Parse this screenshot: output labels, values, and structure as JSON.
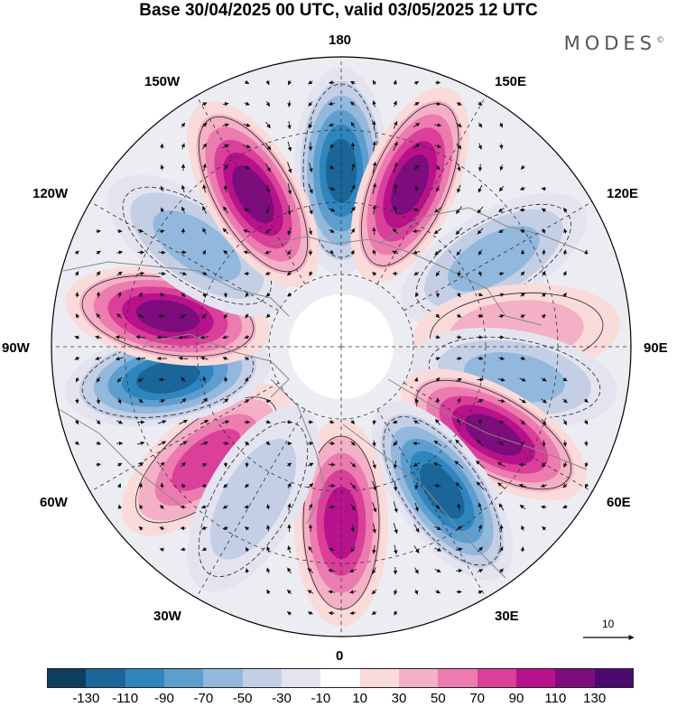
{
  "title": "Base 30/04/2025 00 UTC, valid 03/05/2025 12 UTC",
  "brand": "MODES",
  "brand_mark": "©",
  "map": {
    "projection": "north polar stereographic",
    "longitude_labels": {
      "180": "180",
      "150E": "150E",
      "120E": "120E",
      "90E": "90E",
      "60E": "60E",
      "30E": "30E",
      "0": "0",
      "30W": "30W",
      "60W": "60W",
      "90W": "90W",
      "120W": "120W",
      "150W": "150W"
    },
    "reference_vector_label": "10",
    "land_outline_color": "#888888",
    "graticule_style": "dashed"
  },
  "anomaly_centers": [
    {
      "lon": 180,
      "sign": "negative",
      "peak": -110
    },
    {
      "lon": 157,
      "sign": "positive",
      "peak": 110
    },
    {
      "lon": 120,
      "sign": "negative",
      "peak": -50
    },
    {
      "lon": 95,
      "sign": "positive",
      "peak": 30
    },
    {
      "lon": 80,
      "sign": "negative",
      "peak": -50
    },
    {
      "lon": 60,
      "sign": "positive",
      "peak": 110
    },
    {
      "lon": 35,
      "sign": "negative",
      "peak": -110
    },
    {
      "lon": 0,
      "sign": "positive",
      "peak": 90
    },
    {
      "lon": -50,
      "sign": "positive",
      "peak": 70
    },
    {
      "lon": -30,
      "sign": "negative",
      "peak": -30
    },
    {
      "lon": -80,
      "sign": "negative",
      "peak": -110
    },
    {
      "lon": -100,
      "sign": "positive",
      "peak": 110
    },
    {
      "lon": -125,
      "sign": "negative",
      "peak": -50
    },
    {
      "lon": -150,
      "sign": "positive",
      "peak": 110
    }
  ],
  "colorbar": {
    "ticks": [
      "-130",
      "-110",
      "-90",
      "-70",
      "-50",
      "-30",
      "-10",
      "10",
      "30",
      "50",
      "70",
      "90",
      "110",
      "130"
    ],
    "colors": [
      "#0f3d5e",
      "#1a6699",
      "#2f85be",
      "#5e9ecf",
      "#93b8dd",
      "#c4cfe6",
      "#e4e4f1",
      "#ffffff",
      "#fbdada",
      "#f4b0c4",
      "#ec7bb0",
      "#da3f9a",
      "#b7128c",
      "#7d0c7d",
      "#4b0a6e"
    ]
  }
}
